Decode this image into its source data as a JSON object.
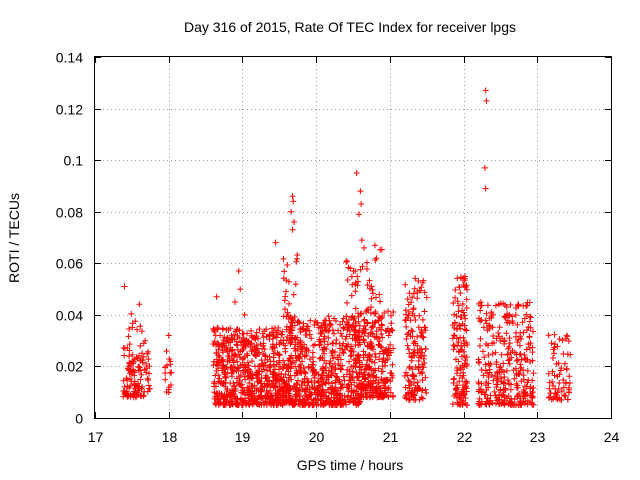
{
  "chart_data": {
    "type": "scatter",
    "title": "Day 316 of 2015, Rate Of TEC Index for receiver lpgs",
    "xlabel": "GPS time / hours",
    "ylabel": "ROTI / TECUs",
    "xlim": [
      17,
      24
    ],
    "ylim": [
      0,
      0.14
    ],
    "x_ticks": [
      17,
      18,
      19,
      20,
      21,
      22,
      23,
      24
    ],
    "x_tick_labels": [
      "17",
      "18",
      "19",
      "20",
      "21",
      "22",
      "23",
      "24"
    ],
    "y_ticks": [
      0,
      0.02,
      0.04,
      0.06,
      0.08,
      0.1,
      0.12,
      0.14
    ],
    "y_tick_labels": [
      "0",
      "0.02",
      "0.04",
      "0.06",
      "0.08",
      "0.1",
      "0.12",
      "0.14"
    ],
    "grid": true,
    "marker": "+",
    "color": "#ff0000",
    "series": [
      {
        "name": "ROTI",
        "clusters": [
          {
            "x": [
              17.38,
              17.75
            ],
            "y": [
              0.008,
              0.03
            ],
            "n": 110
          },
          {
            "x": [
              17.45,
              17.65
            ],
            "y": [
              0.018,
              0.047
            ],
            "n": 20
          },
          {
            "x": [
              17.95,
              18.05
            ],
            "y": [
              0.008,
              0.026
            ],
            "n": 15
          },
          {
            "x": [
              18.6,
              19.1
            ],
            "y": [
              0.005,
              0.035
            ],
            "n": 320
          },
          {
            "x": [
              19.1,
              19.6
            ],
            "y": [
              0.005,
              0.035
            ],
            "n": 320
          },
          {
            "x": [
              19.6,
              20.1
            ],
            "y": [
              0.005,
              0.038
            ],
            "n": 320
          },
          {
            "x": [
              20.1,
              20.6
            ],
            "y": [
              0.005,
              0.04
            ],
            "n": 320
          },
          {
            "x": [
              20.6,
              21.05
            ],
            "y": [
              0.008,
              0.042
            ],
            "n": 260
          },
          {
            "x": [
              19.55,
              19.75
            ],
            "y": [
              0.03,
              0.064
            ],
            "n": 35
          },
          {
            "x": [
              20.4,
              20.7
            ],
            "y": [
              0.03,
              0.062
            ],
            "n": 40
          },
          {
            "x": [
              20.7,
              20.9
            ],
            "y": [
              0.04,
              0.068
            ],
            "n": 20
          },
          {
            "x": [
              21.2,
              21.5
            ],
            "y": [
              0.007,
              0.055
            ],
            "n": 150
          },
          {
            "x": [
              21.85,
              22.05
            ],
            "y": [
              0.005,
              0.055
            ],
            "n": 140
          },
          {
            "x": [
              22.2,
              22.95
            ],
            "y": [
              0.005,
              0.045
            ],
            "n": 320
          },
          {
            "x": [
              23.15,
              23.45
            ],
            "y": [
              0.007,
              0.033
            ],
            "n": 70
          }
        ],
        "outliers": {
          "x": [
            17.4,
            18.0,
            18.95,
            18.97,
            19.45,
            19.68,
            19.69,
            19.7,
            19.66,
            19.68,
            20.55,
            20.6,
            20.61,
            20.58,
            20.62,
            20.65,
            22.3,
            22.31,
            22.29,
            22.3,
            18.65,
            18.9,
            19.03
          ],
          "y": [
            0.051,
            0.032,
            0.057,
            0.05,
            0.068,
            0.086,
            0.084,
            0.076,
            0.08,
            0.073,
            0.095,
            0.088,
            0.083,
            0.079,
            0.069,
            0.066,
            0.127,
            0.123,
            0.097,
            0.089,
            0.047,
            0.045,
            0.04
          ]
        }
      }
    ]
  }
}
